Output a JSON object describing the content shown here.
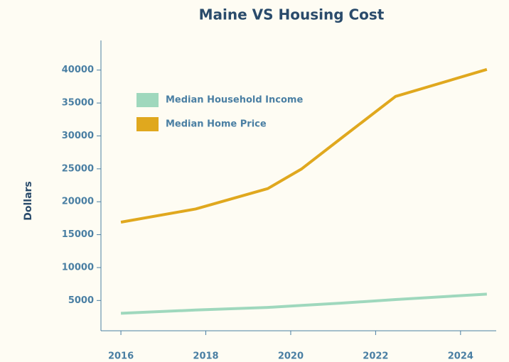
{
  "chart_data": {
    "type": "line",
    "title": "Maine VS Housing Cost",
    "y_label": "Dollars",
    "x": [
      2016,
      2017.76,
      2019.46,
      2020.26,
      2021.2,
      2022.47,
      2024.62
    ],
    "series": [
      {
        "name": "Median Household Income",
        "color": "#9fd8bd",
        "values": [
          3050,
          3550,
          3950,
          4250,
          4600,
          5150,
          5970
        ]
      },
      {
        "name": "Median Home Price",
        "color": "#e0a81e",
        "values": [
          16900,
          18900,
          22000,
          25000,
          29700,
          36000,
          40100
        ]
      }
    ],
    "xlim": [
      2015.53,
      2024.84
    ],
    "xticks": [
      2016,
      2018,
      2020,
      2022,
      2024
    ],
    "ylim": [
      400,
      44500
    ],
    "yticks": [
      5000,
      10000,
      15000,
      20000,
      25000,
      30000,
      35000,
      40000
    ],
    "legend": "upper left"
  }
}
